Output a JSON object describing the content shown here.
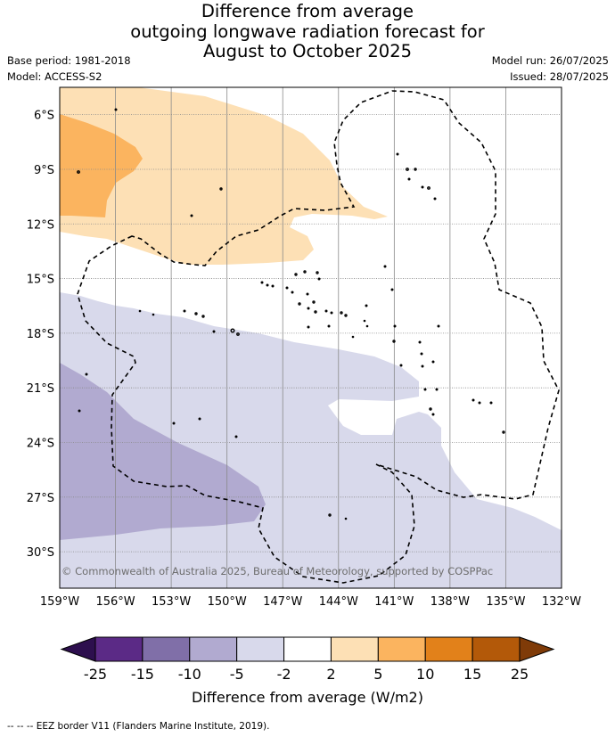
{
  "title_lines": [
    "Difference from average",
    "outgoing longwave radiation forecast for",
    "August to October 2025"
  ],
  "meta_left": {
    "base_period": "Base period: 1981-2018",
    "model": "Model: ACCESS-S2"
  },
  "meta_right": {
    "model_run": "Model run: 26/07/2025",
    "issued": "Issued: 28/07/2025"
  },
  "map": {
    "lon_range": [
      -159,
      -132
    ],
    "lat_range": [
      -32,
      -4.5
    ],
    "lon_ticks": [
      -159,
      -156,
      -153,
      -150,
      -147,
      -144,
      -141,
      -138,
      -135,
      -132
    ],
    "lon_tick_labels": [
      "159°W",
      "156°W",
      "153°W",
      "150°W",
      "147°W",
      "144°W",
      "141°W",
      "138°W",
      "135°W",
      "132°W"
    ],
    "lat_ticks": [
      -6,
      -9,
      -12,
      -15,
      -18,
      -21,
      -24,
      -27,
      -30
    ],
    "lat_tick_labels": [
      "6°S",
      "9°S",
      "12°S",
      "15°S",
      "18°S",
      "21°S",
      "24°S",
      "27°S",
      "30°S"
    ],
    "grid": true,
    "copyright": "© Commonwealth of Australia 2025, Bureau of Meteorology, supported by COSPPac"
  },
  "colorbar": {
    "tick_labels": [
      "-25",
      "-15",
      "-10",
      "-5",
      "-2",
      "2",
      "5",
      "10",
      "15",
      "25"
    ],
    "colors": [
      "#5b2a86",
      "#806fa8",
      "#b1aad0",
      "#d8d9eb",
      "#ffffff",
      "#fde0b5",
      "#fbb45f",
      "#e2811a",
      "#b35909"
    ],
    "under_color": "#2d0f4e",
    "over_color": "#7f3b08",
    "label": "Difference from average (W/m2)"
  },
  "footer": "-- -- -- EEZ border V11 (Flanders Marine Institute, 2019)."
}
